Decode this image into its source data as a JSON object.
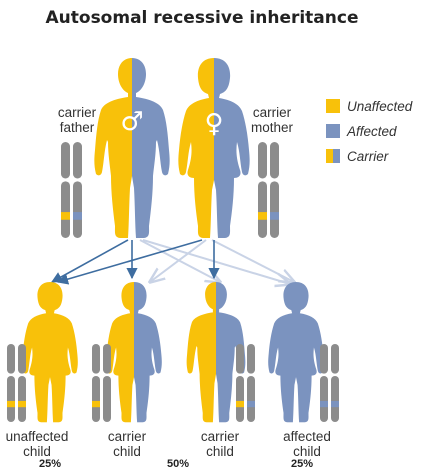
{
  "title": "Autosomal recessive inheritance",
  "colors": {
    "unaffected": "#f8c10a",
    "affected": "#7b93bf",
    "chromosome": "#8c8c8c",
    "arrow_strong": "#3e6da0",
    "arrow_faint": "#c9d3e6"
  },
  "legend": [
    {
      "label": "Unaffected",
      "swatch": "unaffected"
    },
    {
      "label": "Affected",
      "swatch": "affected"
    },
    {
      "label": "Carrier",
      "swatch": "carrier"
    }
  ],
  "parents": {
    "father": {
      "line1": "carrier",
      "line2": "father",
      "symbol": "♂"
    },
    "mother": {
      "line1": "carrier",
      "line2": "mother",
      "symbol": "♀"
    }
  },
  "children": [
    {
      "line1": "unaffected",
      "line2": "child",
      "status": "unaffected"
    },
    {
      "line1": "carrier",
      "line2": "child",
      "status": "carrier"
    },
    {
      "line1": "carrier",
      "line2": "child",
      "status": "carrier"
    },
    {
      "line1": "affected",
      "line2": "child",
      "status": "affected"
    }
  ],
  "percentages": {
    "unaffected": "25%",
    "carrier": "50%",
    "affected": "25%"
  }
}
